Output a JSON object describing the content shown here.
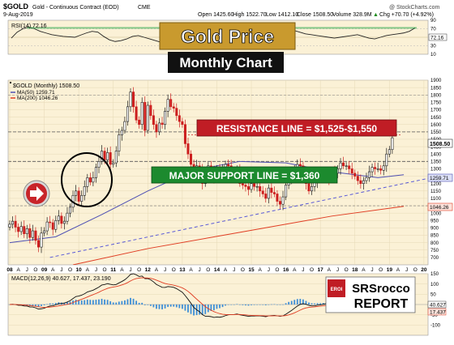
{
  "header": {
    "symbol": "$GOLD",
    "name": "Gold - Continuous Contract (EOD)",
    "exchange": "CME",
    "date": "9-Aug-2019",
    "open": "Open 1425.60",
    "high": "High 1522.70",
    "low": "Low 1412.10",
    "close": "Close 1508.50",
    "volume": "Volume 328.9M",
    "change": "Chg +70.70 (+4.92%)",
    "change_arrow": "▲",
    "watermark": "@ StockCharts.com"
  },
  "banners": {
    "title": "Gold Price",
    "subtitle": "Monthly Chart",
    "resistance": "RESISTANCE LINE = $1,525-$1,550",
    "support": "MAJOR SUPPORT LINE = $1,360"
  },
  "logo": {
    "badge": "EROI",
    "name_top": "SRSrocco",
    "name_bottom": "REPORT"
  },
  "colors": {
    "panel_bg": "#fbf1d6",
    "candle_up": "#1a1a1a",
    "candle_down": "#cc1f1f",
    "ma50": "#4d4fb3",
    "ma200": "#e03c22",
    "resistance_banner": "#c01d25",
    "support_banner": "#1c8a2e",
    "title_banner": "#c99a2e",
    "macd_hist": "#3d8ed6",
    "macd_signal": "#e03c22"
  },
  "chart_data": [
    {
      "type": "line",
      "title": "RSI(14) 72.16",
      "series": [
        {
          "name": "RSI(14)",
          "values": [
            48,
            62,
            70,
            74,
            70,
            64,
            60,
            56,
            54,
            52,
            51,
            50,
            55,
            60,
            64,
            62,
            52,
            44,
            40,
            42,
            46,
            52,
            54,
            50,
            46,
            42,
            38,
            36,
            34,
            32,
            30,
            32,
            36,
            38,
            40,
            38,
            36,
            34,
            36,
            40,
            44,
            46,
            48,
            50,
            52,
            56,
            60,
            64,
            64,
            66,
            62,
            58,
            56,
            54,
            52,
            50,
            48,
            50,
            52,
            54,
            56,
            52,
            48,
            46,
            50,
            54,
            56,
            58,
            60,
            64,
            72
          ]
        }
      ],
      "ylim": [
        10,
        90
      ],
      "ticks": [
        "90",
        "70",
        "50",
        "30",
        "10"
      ],
      "last_label": "72.16"
    },
    {
      "type": "candlestick",
      "legend": [
        "$GOLD (Monthly) 1508.50",
        "MA(50) 1259.71",
        "MA(200) 1046.26"
      ],
      "ylim": [
        650,
        1900
      ],
      "y_ticks": [
        700,
        750,
        800,
        850,
        900,
        950,
        1000,
        1050,
        1100,
        1150,
        1200,
        1250,
        1300,
        1350,
        1400,
        1450,
        1500,
        1550,
        1600,
        1650,
        1700,
        1750,
        1800,
        1850,
        1900
      ],
      "x_labels": [
        "08",
        "A",
        "J",
        "O",
        "09",
        "A",
        "J",
        "O",
        "10",
        "A",
        "J",
        "O",
        "11",
        "A",
        "J",
        "O",
        "12",
        "A",
        "J",
        "O",
        "13",
        "A",
        "J",
        "O",
        "14",
        "A",
        "J",
        "O",
        "15",
        "A",
        "J",
        "O",
        "16",
        "A",
        "J",
        "O",
        "17",
        "A",
        "J",
        "O",
        "18",
        "A",
        "J",
        "O",
        "19",
        "A",
        "J",
        "O",
        "20",
        "A"
      ],
      "close": [
        925,
        945,
        905,
        875,
        910,
        860,
        895,
        835,
        880,
        815,
        770,
        865,
        880,
        940,
        935,
        890,
        950,
        980,
        930,
        945,
        1000,
        1040,
        1120,
        1150,
        1080,
        1120,
        1180,
        1240,
        1210,
        1240,
        1310,
        1350,
        1420,
        1360,
        1410,
        1330,
        1340,
        1420,
        1530,
        1560,
        1620,
        1720,
        1820,
        1720,
        1630,
        1600,
        1750,
        1560,
        1730,
        1660,
        1600,
        1550,
        1610,
        1600,
        1690,
        1770,
        1720,
        1710,
        1660,
        1620,
        1600,
        1470,
        1400,
        1330,
        1250,
        1320,
        1300,
        1200,
        1240,
        1320,
        1280,
        1240,
        1300,
        1250,
        1290,
        1330,
        1320,
        1280,
        1260,
        1290,
        1200,
        1190,
        1180,
        1160,
        1200,
        1180,
        1180,
        1150,
        1130,
        1100,
        1170,
        1140,
        1130,
        1080,
        1060,
        1110,
        1190,
        1230,
        1250,
        1300,
        1330,
        1320,
        1280,
        1200,
        1150,
        1180,
        1210,
        1250,
        1240,
        1260,
        1270,
        1230,
        1280,
        1270,
        1300,
        1340,
        1320,
        1320,
        1300,
        1270,
        1250,
        1220,
        1200,
        1220,
        1240,
        1280,
        1310,
        1300,
        1300,
        1290,
        1320,
        1400,
        1430,
        1510
      ],
      "resistance": [
        1525,
        1550
      ],
      "support": 1360,
      "ma50": [
        [
          0,
          800
        ],
        [
          16,
          840
        ],
        [
          32,
          990
        ],
        [
          48,
          1150
        ],
        [
          64,
          1290
        ],
        [
          80,
          1350
        ],
        [
          96,
          1340
        ],
        [
          112,
          1280
        ],
        [
          128,
          1240
        ],
        [
          137,
          1260
        ]
      ],
      "ma200": [
        [
          22,
          650
        ],
        [
          48,
          760
        ],
        [
          80,
          870
        ],
        [
          112,
          980
        ],
        [
          137,
          1046
        ]
      ],
      "ma50_label": "1259.71",
      "ma200_label": "1046.26",
      "last_price_label": "1508.50"
    },
    {
      "type": "line",
      "title": "MACD(12,26,9) 40.627, 17.437, 23.190",
      "ylim": [
        -150,
        150
      ],
      "ticks": [
        "150",
        "100",
        "50",
        "0",
        "-50",
        "-100"
      ],
      "labels": [
        "40.627",
        "17.437"
      ]
    }
  ]
}
